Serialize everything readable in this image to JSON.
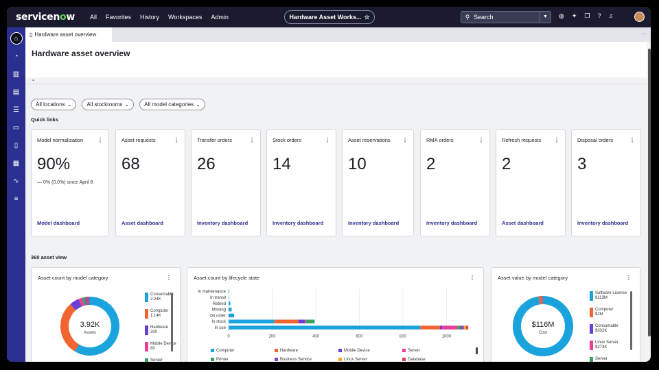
{
  "nav": {
    "logo_pre": "servicen",
    "logo_o": "o",
    "logo_post": "w",
    "links": [
      "All",
      "Favorites",
      "History",
      "Workspaces",
      "Admin"
    ],
    "workspace_pill": "Hardware Asset Works...",
    "search_placeholder": "Search"
  },
  "tab": {
    "label": "Hardware asset overview"
  },
  "page": {
    "title": "Hardware asset overview",
    "filters": [
      "All locations",
      "All stockrooms",
      "All model categories"
    ],
    "quick_links_label": "Quick links",
    "asset_view_label": "360 asset view"
  },
  "cards": [
    {
      "title": "Model normalization",
      "value": "90%",
      "sub": "— 0% (0.0%) since April 8",
      "link": "Model dashboard"
    },
    {
      "title": "Asset requests",
      "value": "68",
      "sub": "",
      "link": "Asset dashboard"
    },
    {
      "title": "Transfer orders",
      "value": "26",
      "sub": "",
      "link": "Inventory dashboard"
    },
    {
      "title": "Stock orders",
      "value": "14",
      "sub": "",
      "link": "Inventory dashboard"
    },
    {
      "title": "Asset reservations",
      "value": "10",
      "sub": "",
      "link": "Inventory dashboard"
    },
    {
      "title": "RMA orders",
      "value": "2",
      "sub": "",
      "link": "Inventory dashboard"
    },
    {
      "title": "Refresh requests",
      "value": "2",
      "sub": "",
      "link": "Asset dashboard"
    },
    {
      "title": "Disposal orders",
      "value": "3",
      "sub": "",
      "link": "Inventory dashboard"
    }
  ],
  "colors": {
    "computer": "#1aa3dc",
    "hardware": "#f26430",
    "mobile": "#6a3fd6",
    "server": "#e8409a",
    "printer": "#3aa05a",
    "business": "#8e44c0",
    "linux": "#f5a623",
    "database": "#d9435a",
    "nav": "#1a1b2e",
    "rail": "#2b2f8f"
  },
  "chart_data": [
    {
      "type": "pie",
      "title": "Asset count by model category",
      "center_value": "3.92K",
      "center_label": "Assets",
      "legend": [
        {
          "name": "Consumable",
          "value": "2.24K",
          "num": 2240,
          "color": "#1aa3dc"
        },
        {
          "name": "Computer",
          "value": "1.14K",
          "num": 1140,
          "color": "#f26430"
        },
        {
          "name": "Hardware",
          "value": "200",
          "num": 200,
          "color": "#6a3fd6"
        },
        {
          "name": "Mobile Device",
          "value": "80",
          "num": 80,
          "color": "#e8409a"
        },
        {
          "name": "Server",
          "value": "",
          "num": 60,
          "color": "#3aa05a"
        }
      ],
      "extra_slices": [
        {
          "num": 40,
          "color": "#8e44c0"
        },
        {
          "num": 35,
          "color": "#d9435a"
        },
        {
          "num": 30,
          "color": "#5a6bd8"
        }
      ]
    },
    {
      "type": "bar",
      "title": "Asset count by lifecycle state",
      "categories": [
        "In maintenance",
        "In transit",
        "Retired",
        "Missing",
        "On order",
        "In stock",
        "In use"
      ],
      "xlim": [
        0,
        1150
      ],
      "xticks": [
        "0",
        "200",
        "400",
        "600",
        "800",
        "1000"
      ],
      "xtick_values": [
        0,
        200,
        400,
        600,
        800,
        1000
      ],
      "series": [
        {
          "name": "Computer",
          "color": "#1aa3dc",
          "values": [
            3,
            2,
            8,
            14,
            25,
            210,
            880
          ]
        },
        {
          "name": "Hardware",
          "color": "#f26430",
          "values": [
            0,
            0,
            0,
            0,
            0,
            110,
            90
          ]
        },
        {
          "name": "Mobile Device",
          "color": "#6a3fd6",
          "values": [
            0,
            0,
            0,
            0,
            0,
            30,
            10
          ]
        },
        {
          "name": "Server",
          "color": "#e8409a",
          "values": [
            0,
            0,
            0,
            0,
            0,
            5,
            70
          ]
        },
        {
          "name": "Printer",
          "color": "#3aa05a",
          "values": [
            0,
            0,
            0,
            0,
            0,
            40,
            15
          ]
        },
        {
          "name": "Business Service",
          "color": "#8e44c0",
          "values": [
            0,
            0,
            0,
            0,
            0,
            0,
            15
          ]
        },
        {
          "name": "Linux Server",
          "color": "#f5a623",
          "values": [
            0,
            0,
            0,
            0,
            0,
            0,
            10
          ]
        },
        {
          "name": "Database",
          "color": "#d9435a",
          "values": [
            0,
            0,
            0,
            0,
            0,
            0,
            10
          ]
        }
      ]
    },
    {
      "type": "pie",
      "title": "Asset value by model category",
      "center_value": "$116M",
      "center_label": "Cost",
      "legend": [
        {
          "name": "Software License",
          "value": "$113M",
          "num": 113,
          "color": "#1aa3dc"
        },
        {
          "name": "Computer",
          "value": "$2M",
          "num": 2,
          "color": "#f26430"
        },
        {
          "name": "Consumable",
          "value": "$332K",
          "num": 0.332,
          "color": "#6a3fd6"
        },
        {
          "name": "Linux Server",
          "value": "$273K",
          "num": 0.273,
          "color": "#e8409a"
        },
        {
          "name": "Server",
          "value": "",
          "num": 0.2,
          "color": "#3aa05a"
        }
      ],
      "extra_slices": []
    }
  ]
}
